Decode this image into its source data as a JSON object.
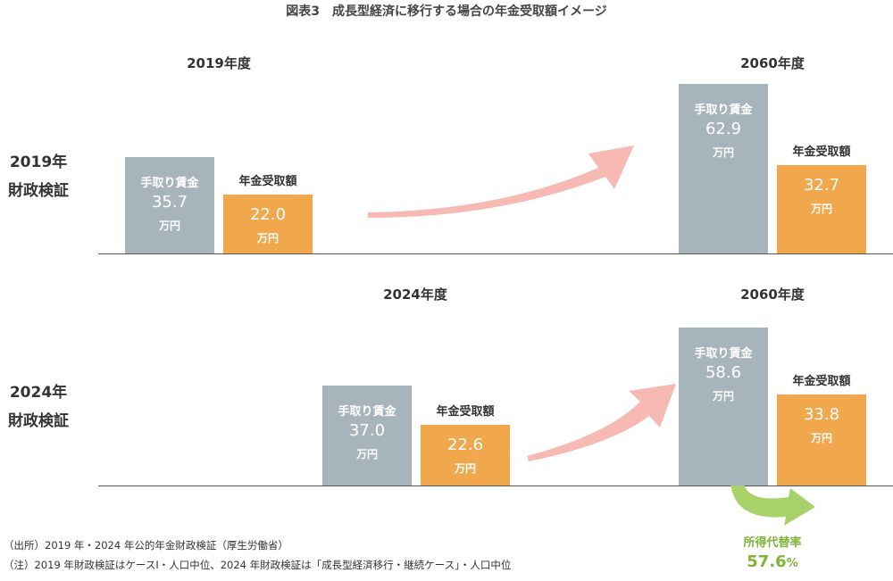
{
  "title": "図表3　成長型経済に移行する場合の年金受取額イメージ",
  "chart_data": {
    "type": "bar",
    "panels": [
      {
        "row_label": [
          "2019年",
          "財政検証"
        ],
        "groups": [
          {
            "year": "2019年度",
            "bars": [
              {
                "name": "手取り賃金",
                "value": 35.7,
                "unit": "万円",
                "color": "#a7b4bc"
              },
              {
                "name": "年金受取額",
                "value": 22.0,
                "unit": "万円",
                "color": "#f1a74b"
              }
            ]
          },
          {
            "year": "2060年度",
            "bars": [
              {
                "name": "手取り賃金",
                "value": 62.9,
                "unit": "万円",
                "color": "#a7b4bc"
              },
              {
                "name": "年金受取額",
                "value": 32.7,
                "unit": "万円",
                "color": "#f1a74b"
              }
            ]
          }
        ]
      },
      {
        "row_label": [
          "2024年",
          "財政検証"
        ],
        "groups": [
          {
            "year": "2024年度",
            "bars": [
              {
                "name": "手取り賃金",
                "value": 37.0,
                "unit": "万円",
                "color": "#a7b4bc"
              },
              {
                "name": "年金受取額",
                "value": 22.6,
                "unit": "万円",
                "color": "#f1a74b"
              }
            ]
          },
          {
            "year": "2060年度",
            "bars": [
              {
                "name": "手取り賃金",
                "value": 58.6,
                "unit": "万円",
                "color": "#a7b4bc"
              },
              {
                "name": "年金受取額",
                "value": 33.8,
                "unit": "万円",
                "color": "#f1a74b"
              }
            ]
          }
        ]
      }
    ],
    "replacement_rate": {
      "label": "所得代替率",
      "value": "57.6",
      "unit": "%"
    }
  },
  "notes": [
    "（出所）2019 年・2024 年公的年金財政検証（厚生労働省）",
    "（注）2019 年財政検証はケースⅠ・人口中位、2024 年財政検証は「成長型経済移行・継続ケース」・人口中位"
  ],
  "colors": {
    "gray": "#a7b4bc",
    "orange": "#f1a74b",
    "arrow_pink": "#f7b9b4",
    "arrow_green": "#a9d16a",
    "green_text": "#7fb33a"
  }
}
